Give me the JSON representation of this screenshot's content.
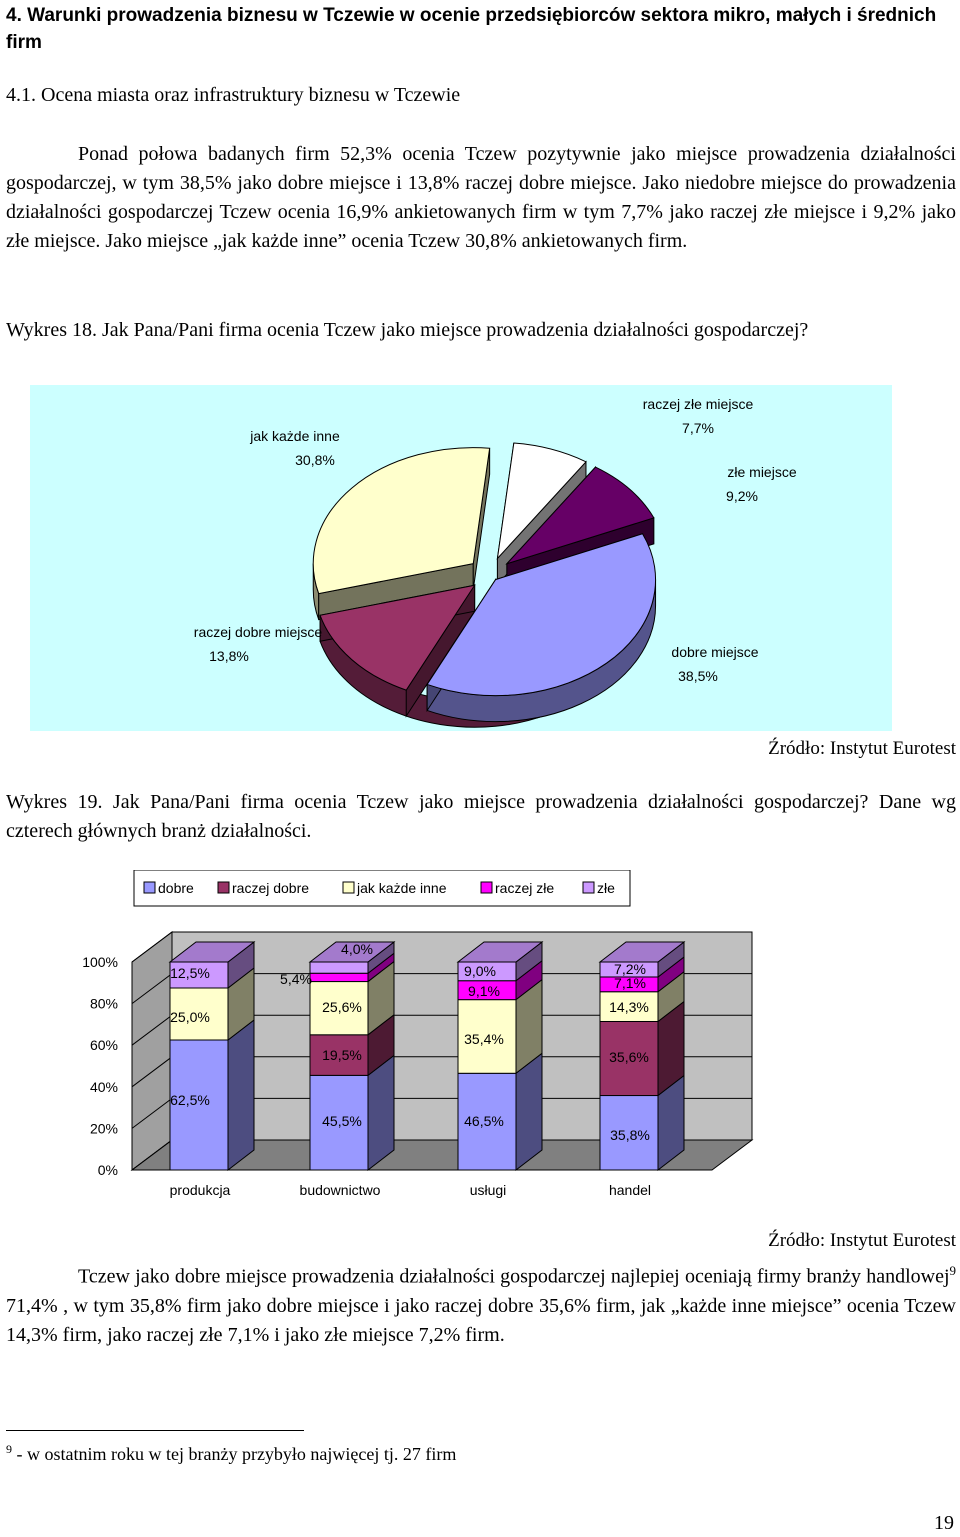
{
  "heading": "4. Warunki prowadzenia biznesu w Tczewie w ocenie przedsiębiorców sektora mikro, małych i średnich firm",
  "subheading": "4.1. Ocena miasta oraz infrastruktury biznesu w Tczewie",
  "paragraph1": "Ponad połowa badanych firm  52,3% ocenia Tczew pozytywnie jako miejsce prowadzenia działalności gospodarczej, w tym 38,5% jako dobre miejsce i 13,8% raczej dobre miejsce. Jako niedobre miejsce do prowadzenia działalności gospodarczej Tczew ocenia 16,9% ankietowanych firm w tym 7,7% jako raczej złe miejsce i 9,2% jako złe miejsce. Jako miejsce „jak każde inne” ocenia Tczew 30,8% ankietowanych firm.",
  "caption18": "Wykres 18.  Jak Pana/Pani firma ocenia Tczew jako miejsce prowadzenia działalności gospodarczej?",
  "source18": "Źródło: Instytut Eurotest",
  "caption19": "Wykres 19.  Jak Pana/Pani firma ocenia Tczew jako miejsce prowadzenia działalności gospodarczej? Dane wg czterech głównych branż działalności.",
  "source19": "Źródło: Instytut Eurotest",
  "paragraph2_a": "Tczew jako dobre miejsce  prowadzenia działalności gospodarczej najlepiej oceniają firmy branży handlowej",
  "paragraph2_sup": "9",
  "paragraph2_b": " 71,4% , w tym 35,8% firm jako dobre miejsce i  jako raczej dobre 35,6% firm, jak „każde inne miejsce” ocenia Tczew 14,3% firm, jako raczej złe 7,1% i jako złe miejsce 7,2% firm.",
  "footnote_sup": "9",
  "footnote": " - w ostatnim roku w tej branży przybyło najwięcej tj. 27 firm",
  "page_number": "19",
  "chart_data": [
    {
      "type": "pie",
      "labels": [
        "jak każde inne",
        "raczej złe miejsce",
        "złe miejsce",
        "dobre miejsce",
        "raczej dobre miejsce"
      ],
      "values": [
        30.8,
        7.7,
        9.2,
        38.5,
        13.8
      ],
      "value_labels": [
        "30,8%",
        "7,7%",
        "9,2%",
        "38,5%",
        "13,8%"
      ],
      "colors": [
        "#ffffcc",
        "#ffffff",
        "#660066",
        "#9999ff",
        "#993366"
      ],
      "background": "#ccffff"
    },
    {
      "type": "bar",
      "stacked": true,
      "percent": true,
      "categories": [
        "produkcja",
        "budownictwo",
        "usługi",
        "handel"
      ],
      "series": [
        {
          "name": "dobre",
          "color": "#9999ff",
          "values": [
            62.5,
            45.5,
            46.5,
            35.8
          ],
          "labels": [
            "62,5%",
            "45,5%",
            "46,5%",
            "35,8%"
          ]
        },
        {
          "name": "raczej dobre",
          "color": "#993366",
          "values": [
            0,
            19.5,
            0,
            35.6
          ],
          "labels": [
            "",
            "19,5%",
            "",
            "35,6%"
          ]
        },
        {
          "name": "jak każde inne",
          "color": "#ffffcc",
          "values": [
            25.0,
            25.6,
            35.4,
            14.3
          ],
          "labels": [
            "25,0%",
            "25,6%",
            "35,4%",
            "14,3%"
          ]
        },
        {
          "name": "raczej złe",
          "color": "#ff00ff",
          "values": [
            0,
            4.0,
            9.1,
            7.1
          ],
          "labels": [
            "",
            "4,0%",
            "9,1%",
            "7,1%"
          ]
        },
        {
          "name": "złe",
          "color": "#cc99ff",
          "values": [
            12.5,
            5.4,
            9.0,
            7.2
          ],
          "labels": [
            "12,5%",
            "5,4%",
            "9,0%",
            "7,2%"
          ]
        }
      ],
      "yticks": [
        "0%",
        "20%",
        "40%",
        "60%",
        "80%",
        "100%"
      ],
      "ylim": [
        0,
        100
      ],
      "grid": true,
      "legend": "top"
    }
  ]
}
